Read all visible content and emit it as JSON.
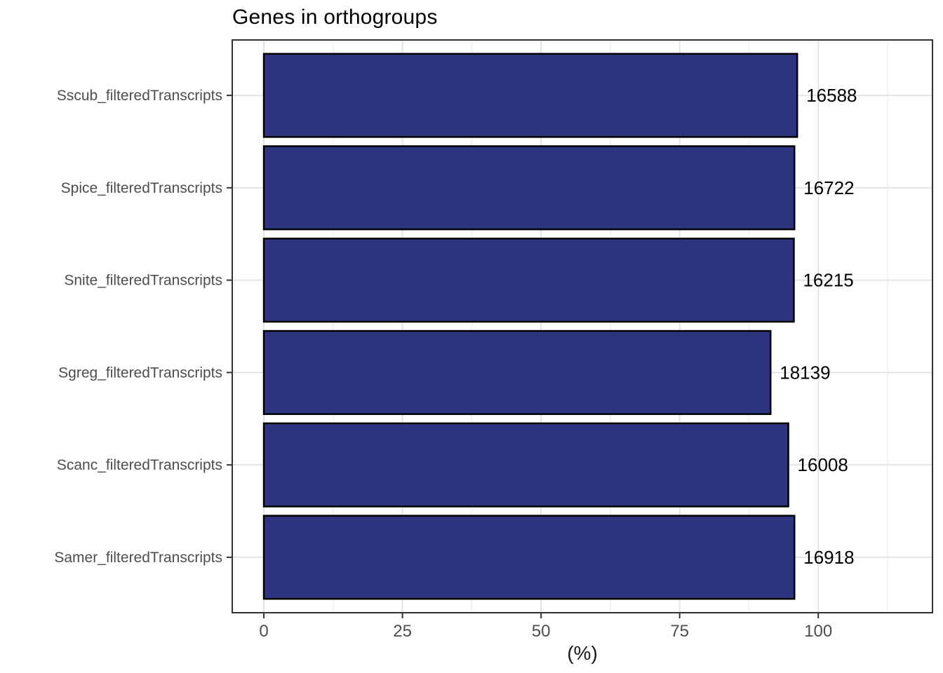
{
  "chart_data": {
    "type": "bar",
    "orientation": "horizontal",
    "title": "Genes in orthogroups",
    "xlabel": "(%)",
    "ylabel": "",
    "categories": [
      "Sscub_filteredTranscripts",
      "Spice_filteredTranscripts",
      "Snite_filteredTranscripts",
      "Sgreg_filteredTranscripts",
      "Scanc_filteredTranscripts",
      "Samer_filteredTranscripts"
    ],
    "values": [
      96.2,
      95.7,
      95.6,
      91.4,
      94.6,
      95.7
    ],
    "bar_labels": [
      "16588",
      "16722",
      "16215",
      "18139",
      "16008",
      "16918"
    ],
    "x_ticks": [
      0,
      25,
      50,
      75,
      100
    ],
    "x_minor_ticks": [
      12.5,
      37.5,
      62.5,
      87.5,
      112.5
    ],
    "xlim": [
      -5.7,
      120.6
    ],
    "grid": true,
    "legend": "none",
    "colors": {
      "bar_fill": "#2D3580",
      "bar_stroke": "#000000",
      "panel_border": "#333333",
      "grid_major": "#E4E4E4",
      "grid_minor": "#EFEFEF",
      "axis_text": "#4D4D4D",
      "tick_mark": "#333333",
      "bar_label": "#000000",
      "background": "#FFFFFF"
    }
  }
}
